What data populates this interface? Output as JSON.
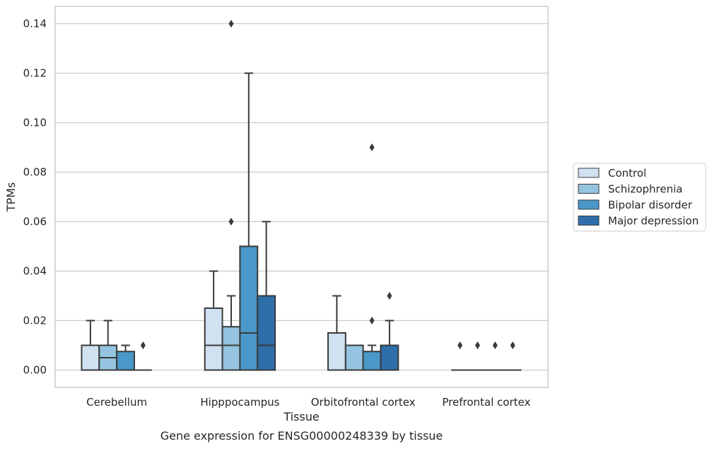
{
  "chart_data": {
    "type": "box",
    "caption": "Gene expression for ENSG00000248339 by tissue",
    "xlabel": "Tissue",
    "ylabel": "TPMs",
    "ylim": [
      -0.007,
      0.147
    ],
    "yticks": [
      0.0,
      0.02,
      0.04,
      0.06,
      0.08,
      0.1,
      0.12,
      0.14
    ],
    "ytick_labels": [
      "0.00",
      "0.02",
      "0.04",
      "0.06",
      "0.08",
      "0.10",
      "0.12",
      "0.14"
    ],
    "grid": true,
    "legend_placement": "right",
    "categories": [
      "Cerebellum",
      "Hipppocampus",
      "Orbitofrontal cortex",
      "Prefrontal cortex"
    ],
    "series": [
      {
        "name": "Control",
        "color": "#d0e1f2",
        "boxes": [
          {
            "whislo": 0.0,
            "q1": 0.0,
            "med": 0.0,
            "q3": 0.01,
            "whishi": 0.02,
            "fliers": []
          },
          {
            "whislo": 0.0,
            "q1": 0.0,
            "med": 0.01,
            "q3": 0.025,
            "whishi": 0.04,
            "fliers": []
          },
          {
            "whislo": 0.0,
            "q1": 0.0,
            "med": 0.0,
            "q3": 0.015,
            "whishi": 0.03,
            "fliers": []
          },
          {
            "whislo": 0.0,
            "q1": 0.0,
            "med": 0.0,
            "q3": 0.0,
            "whishi": 0.0,
            "fliers": [
              0.01
            ]
          }
        ]
      },
      {
        "name": "Schizophrenia",
        "color": "#94c4df",
        "boxes": [
          {
            "whislo": 0.0,
            "q1": 0.0,
            "med": 0.005,
            "q3": 0.01,
            "whishi": 0.02,
            "fliers": []
          },
          {
            "whislo": 0.0,
            "q1": 0.0,
            "med": 0.01,
            "q3": 0.0175,
            "whishi": 0.03,
            "fliers": [
              0.06,
              0.14
            ]
          },
          {
            "whislo": 0.0,
            "q1": 0.0,
            "med": 0.0,
            "q3": 0.01,
            "whishi": 0.01,
            "fliers": []
          },
          {
            "whislo": 0.0,
            "q1": 0.0,
            "med": 0.0,
            "q3": 0.0,
            "whishi": 0.0,
            "fliers": [
              0.01
            ]
          }
        ]
      },
      {
        "name": "Bipolar disorder",
        "color": "#4a98c9",
        "boxes": [
          {
            "whislo": 0.0,
            "q1": 0.0,
            "med": 0.0,
            "q3": 0.0075,
            "whishi": 0.01,
            "fliers": []
          },
          {
            "whislo": 0.0,
            "q1": 0.0,
            "med": 0.015,
            "q3": 0.05,
            "whishi": 0.12,
            "fliers": []
          },
          {
            "whislo": 0.0,
            "q1": 0.0,
            "med": 0.0,
            "q3": 0.0075,
            "whishi": 0.01,
            "fliers": [
              0.02,
              0.09
            ]
          },
          {
            "whislo": 0.0,
            "q1": 0.0,
            "med": 0.0,
            "q3": 0.0,
            "whishi": 0.0,
            "fliers": [
              0.01
            ]
          }
        ]
      },
      {
        "name": "Major depression",
        "color": "#2e6fab",
        "boxes": [
          {
            "whislo": 0.0,
            "q1": 0.0,
            "med": 0.0,
            "q3": 0.0,
            "whishi": 0.0,
            "fliers": [
              0.01
            ]
          },
          {
            "whislo": 0.0,
            "q1": 0.0,
            "med": 0.01,
            "q3": 0.03,
            "whishi": 0.06,
            "fliers": []
          },
          {
            "whislo": 0.0,
            "q1": 0.0,
            "med": 0.0,
            "q3": 0.01,
            "whishi": 0.02,
            "fliers": [
              0.03
            ]
          },
          {
            "whislo": 0.0,
            "q1": 0.0,
            "med": 0.0,
            "q3": 0.0,
            "whishi": 0.0,
            "fliers": [
              0.01
            ]
          }
        ]
      }
    ]
  }
}
